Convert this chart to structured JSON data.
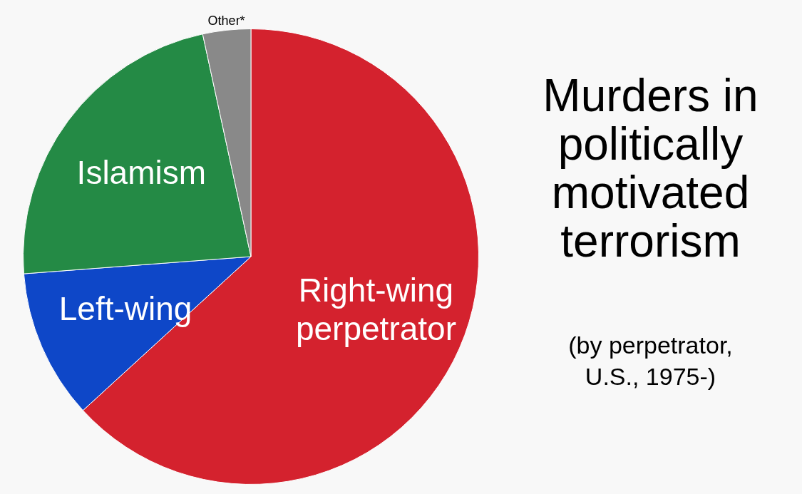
{
  "chart_data": {
    "type": "pie",
    "title": "Murders in politically motivated terrorism",
    "subtitle": "(by perpetrator, U.S., 1975-)",
    "categories": [
      "Right-wing perpetrator",
      "Left-wing",
      "Islamism",
      "Other*"
    ],
    "values": [
      63.2,
      10.6,
      22.8,
      3.4
    ],
    "colors": [
      "#d4222e",
      "#0e47c8",
      "#248a45",
      "#898989"
    ],
    "legend": false
  }
}
